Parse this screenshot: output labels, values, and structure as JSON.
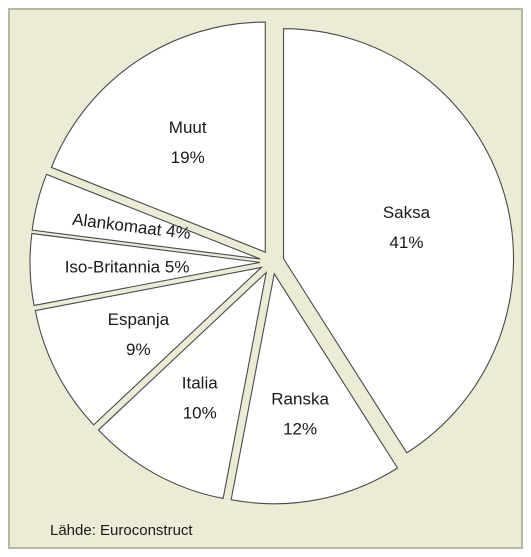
{
  "chart_data": {
    "type": "pie",
    "title": "",
    "slices": [
      {
        "label": "Saksa",
        "value": 41,
        "value_label": "41%"
      },
      {
        "label": "Ranska",
        "value": 12,
        "value_label": "12%"
      },
      {
        "label": "Italia",
        "value": 10,
        "value_label": "10%"
      },
      {
        "label": "Espanja",
        "value": 9,
        "value_label": "9%"
      },
      {
        "label": "Iso-Britannia",
        "value": 5,
        "value_label": "5%"
      },
      {
        "label": "Alankomaat",
        "value": 4,
        "value_label": "4%"
      },
      {
        "label": "Muut",
        "value": 19,
        "value_label": "19%"
      }
    ],
    "exploded": true,
    "colors": {
      "fill": "#ffffff",
      "stroke": "#4a4a4a",
      "background": "#ebebd6"
    }
  },
  "source": "Lähde: Euroconstruct"
}
